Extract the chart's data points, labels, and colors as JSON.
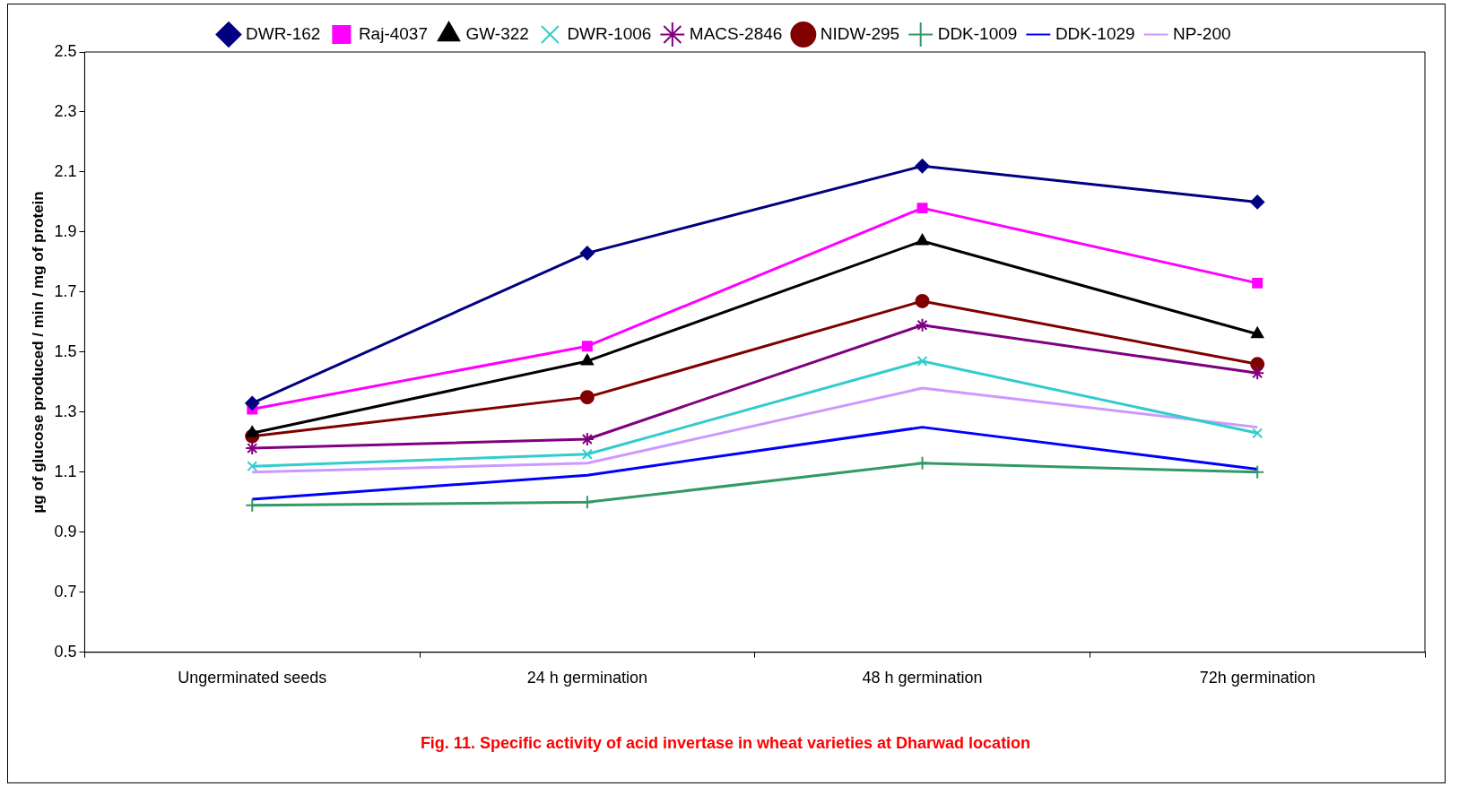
{
  "chart_data": {
    "type": "line",
    "title": "Fig. 11. Specific activity of acid invertase in wheat varieties at Dharwad location",
    "ylabel": "µg of glucose produced / min / mg of protein",
    "categories": [
      "Ungerminated seeds",
      "24 h germination",
      "48 h germination",
      "72h germination"
    ],
    "ylim": [
      0.5,
      2.5
    ],
    "yticks": [
      0.5,
      0.7,
      0.9,
      1.1,
      1.3,
      1.5,
      1.7,
      1.9,
      2.1,
      2.3,
      2.5
    ],
    "grid": false,
    "legend": "top",
    "series": [
      {
        "name": "DWR-162",
        "color": "#000080",
        "marker": "diamond",
        "values": [
          1.33,
          1.83,
          2.12,
          2.0
        ]
      },
      {
        "name": "Raj-4037",
        "color": "#ff00ff",
        "marker": "square",
        "values": [
          1.31,
          1.52,
          1.98,
          1.73
        ]
      },
      {
        "name": "GW-322",
        "color": "#000000",
        "marker": "triangle",
        "values": [
          1.23,
          1.47,
          1.87,
          1.56
        ]
      },
      {
        "name": "DWR-1006",
        "color": "#33cccc",
        "marker": "cross",
        "values": [
          1.12,
          1.16,
          1.47,
          1.23
        ]
      },
      {
        "name": "MACS-2846",
        "color": "#800080",
        "marker": "cross",
        "values": [
          1.18,
          1.21,
          1.59,
          1.43
        ]
      },
      {
        "name": "NIDW-295",
        "color": "#800000",
        "marker": "circle",
        "values": [
          1.22,
          1.35,
          1.67,
          1.46
        ]
      },
      {
        "name": "DDK-1009",
        "color": "#339966",
        "marker": "cross",
        "values": [
          0.99,
          1.0,
          1.13,
          1.1
        ]
      },
      {
        "name": "DDK-1029",
        "color": "#0000ff",
        "marker": "none",
        "values": [
          1.01,
          1.09,
          1.25,
          1.11
        ]
      },
      {
        "name": "NP-200",
        "color": "#cc99ff",
        "marker": "none",
        "values": [
          1.1,
          1.13,
          1.38,
          1.25
        ]
      }
    ]
  }
}
